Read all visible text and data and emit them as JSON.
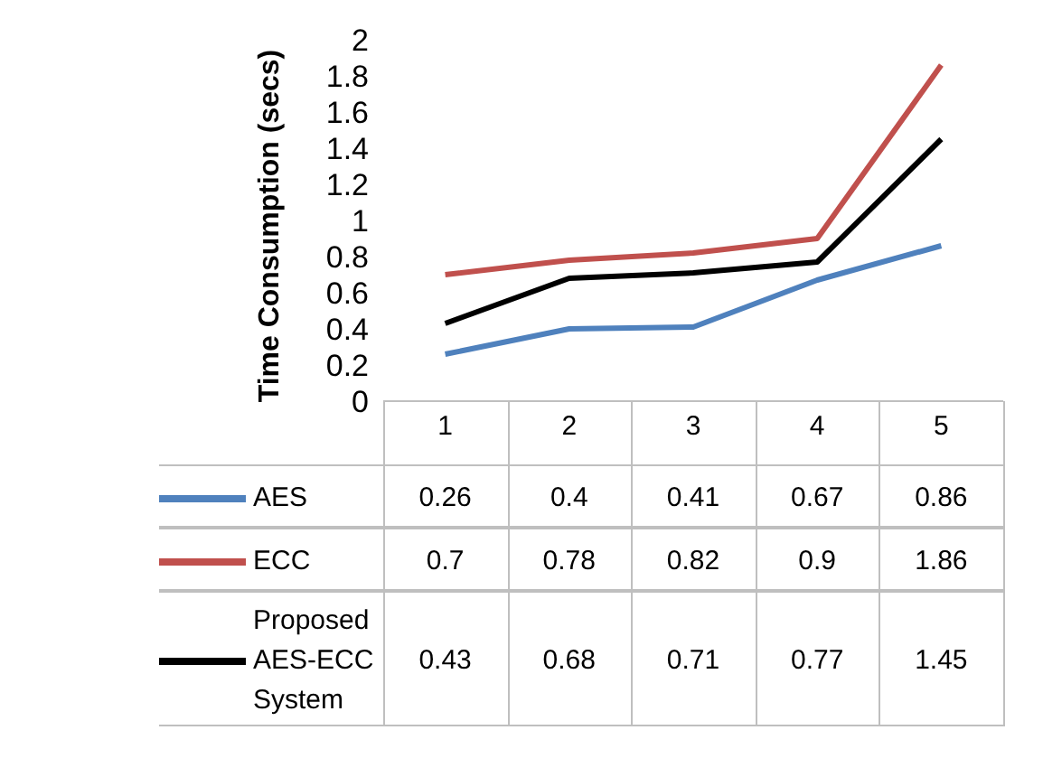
{
  "chart_data": {
    "type": "line",
    "ylabel": "Time Consumption (secs)",
    "categories": [
      "1",
      "2",
      "3",
      "4",
      "5"
    ],
    "series": [
      {
        "name": "AES",
        "color": "#4f81bd",
        "values": [
          0.26,
          0.4,
          0.41,
          0.67,
          0.86
        ]
      },
      {
        "name": "ECC",
        "color": "#c0504d",
        "values": [
          0.7,
          0.78,
          0.82,
          0.9,
          1.86
        ]
      },
      {
        "name": "Proposed AES-ECC System",
        "color": "#000000",
        "values": [
          0.43,
          0.68,
          0.71,
          0.77,
          1.45
        ]
      }
    ],
    "ylim": [
      0,
      2
    ],
    "yticks": [
      0,
      0.2,
      0.4,
      0.6,
      0.8,
      1,
      1.2,
      1.4,
      1.6,
      1.8,
      2
    ],
    "grid": false,
    "legend": "bottom",
    "marker": "none",
    "data_labels": true
  }
}
